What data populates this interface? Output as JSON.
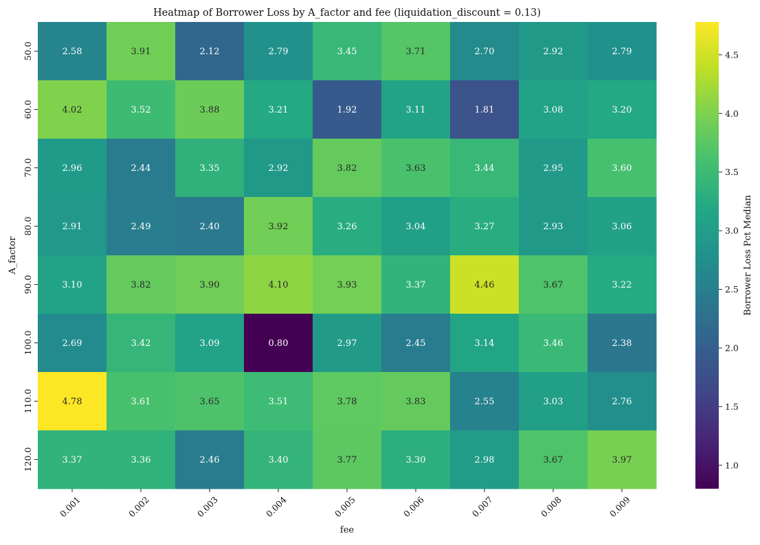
{
  "chart_data": {
    "type": "heatmap",
    "title": "Heatmap of Borrower Loss by A_factor and fee (liquidation_discount = 0.13)",
    "xlabel": "fee",
    "ylabel": "A_factor",
    "colorbar_label": "Borrower Loss Pct Median",
    "colormap": "viridis",
    "x_categories": [
      "0.001",
      "0.002",
      "0.003",
      "0.004",
      "0.005",
      "0.006",
      "0.007",
      "0.008",
      "0.009"
    ],
    "y_categories": [
      "50.0",
      "60.0",
      "70.0",
      "80.0",
      "90.0",
      "100.0",
      "110.0",
      "120.0"
    ],
    "values": [
      [
        2.58,
        3.91,
        2.12,
        2.79,
        3.45,
        3.71,
        2.7,
        2.92,
        2.79
      ],
      [
        4.02,
        3.52,
        3.88,
        3.21,
        1.92,
        3.11,
        1.81,
        3.08,
        3.2
      ],
      [
        2.96,
        2.44,
        3.35,
        2.92,
        3.82,
        3.63,
        3.44,
        2.95,
        3.6
      ],
      [
        2.91,
        2.49,
        2.4,
        3.92,
        3.26,
        3.04,
        3.27,
        2.93,
        3.06
      ],
      [
        3.1,
        3.82,
        3.9,
        4.1,
        3.93,
        3.37,
        4.46,
        3.67,
        3.22
      ],
      [
        2.69,
        3.42,
        3.09,
        0.8,
        2.97,
        2.45,
        3.14,
        3.46,
        2.38
      ],
      [
        4.78,
        3.61,
        3.65,
        3.51,
        3.78,
        3.83,
        2.55,
        3.03,
        2.76
      ],
      [
        3.37,
        3.36,
        2.46,
        3.4,
        3.77,
        3.3,
        2.98,
        3.67,
        3.97
      ]
    ],
    "colorbar_range": [
      0.8,
      4.78
    ],
    "colorbar_ticks": [
      "1.0",
      "1.5",
      "2.0",
      "2.5",
      "3.0",
      "3.5",
      "4.0",
      "4.5"
    ],
    "annotation_format": "2 decimals"
  }
}
